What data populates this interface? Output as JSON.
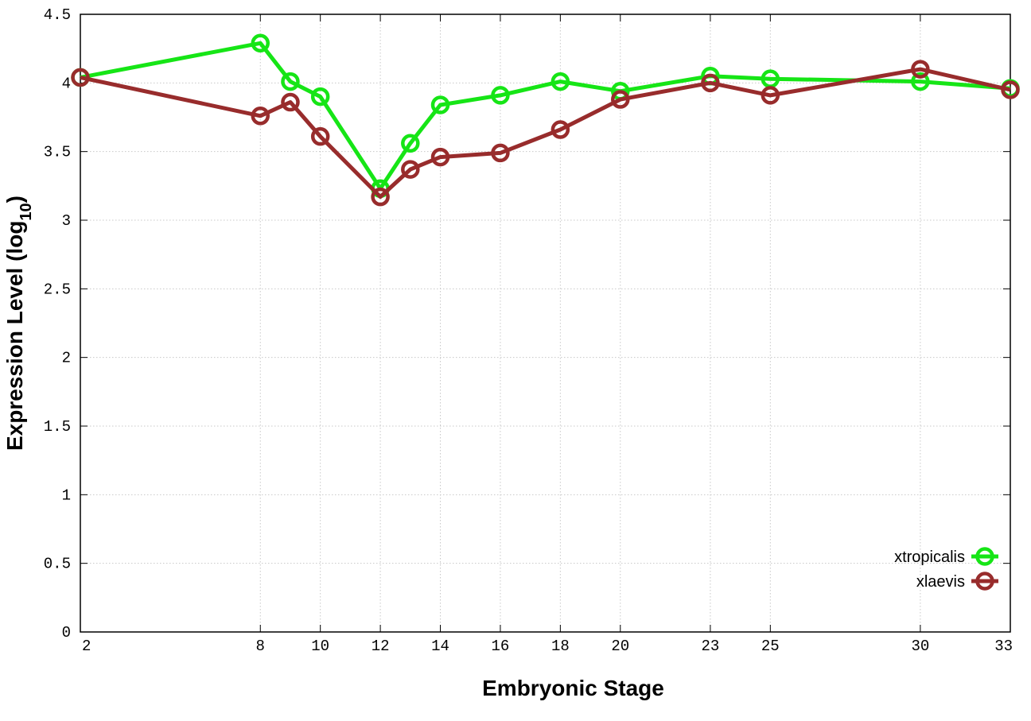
{
  "chart_data": {
    "type": "line",
    "xlabel": "Embryonic Stage",
    "ylabel": {
      "main": "Expression Level (log",
      "sub": "10",
      "end": ")"
    },
    "xlim": [
      2,
      33
    ],
    "ylim": [
      0,
      4.5
    ],
    "x_ticks": [
      2,
      8,
      10,
      12,
      14,
      16,
      18,
      20,
      23,
      25,
      30,
      33
    ],
    "y_ticks": [
      "0",
      "0.5",
      "1",
      "1.5",
      "2",
      "2.5",
      "3",
      "3.5",
      "4",
      "4.5"
    ],
    "grid": true,
    "legend_position": "bottom-right",
    "series": [
      {
        "name": "xtropicalis",
        "color": "#16e516",
        "x": [
          2,
          8,
          9,
          10,
          12,
          13,
          14,
          16,
          18,
          20,
          23,
          25,
          30,
          33
        ],
        "y": [
          4.04,
          4.29,
          4.01,
          3.9,
          3.23,
          3.56,
          3.84,
          3.91,
          4.01,
          3.94,
          4.05,
          4.03,
          4.01,
          3.96
        ]
      },
      {
        "name": "xlaevis",
        "color": "#982c2c",
        "x": [
          2,
          8,
          9,
          10,
          12,
          13,
          14,
          16,
          18,
          20,
          23,
          25,
          30,
          33
        ],
        "y": [
          4.04,
          3.76,
          3.86,
          3.61,
          3.17,
          3.37,
          3.46,
          3.49,
          3.66,
          3.88,
          4.0,
          3.91,
          4.1,
          3.95
        ]
      }
    ]
  }
}
